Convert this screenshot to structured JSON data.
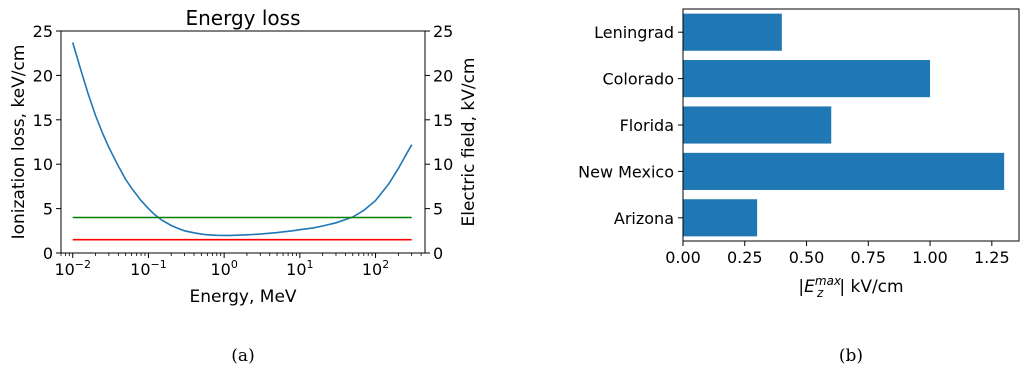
{
  "chart_data": [
    {
      "type": "line",
      "title": "Energy loss",
      "xlabel": "Energy, MeV",
      "ylabel": "Ionization loss, keV/cm",
      "ylabel_right": "Electric field, kV/cm",
      "xscale": "log",
      "xlim": [
        0.007,
        450
      ],
      "ylim": [
        0,
        25
      ],
      "ylim_right": [
        0,
        25
      ],
      "x_ticks": [
        {
          "value": 0.01,
          "base": "10",
          "exp": "−2"
        },
        {
          "value": 0.1,
          "base": "10",
          "exp": "−1"
        },
        {
          "value": 1,
          "base": "10",
          "exp": "0"
        },
        {
          "value": 10,
          "base": "10",
          "exp": "1"
        },
        {
          "value": 100,
          "base": "10",
          "exp": "2"
        }
      ],
      "y_ticks": [
        "0",
        "5",
        "10",
        "15",
        "20",
        "25"
      ],
      "y_ticks_right": [
        "0",
        "5",
        "10",
        "15",
        "20",
        "25"
      ],
      "grid": false,
      "colors": {
        "curve": "#1f77b4",
        "green": "#008000",
        "red": "#ff0000"
      },
      "series": [
        {
          "x": [
            0.01,
            0.013,
            0.016,
            0.02,
            0.025,
            0.03,
            0.04,
            0.05,
            0.06,
            0.08,
            0.1,
            0.12,
            0.15,
            0.2,
            0.25,
            0.3,
            0.4,
            0.5,
            0.6,
            0.8,
            1.0,
            1.2,
            1.5,
            2,
            3,
            5,
            8,
            10,
            15,
            20,
            30,
            50,
            70,
            100,
            150,
            200,
            250,
            300
          ],
          "y": [
            23.7,
            20.4,
            17.9,
            15.5,
            13.4,
            11.9,
            9.8,
            8.3,
            7.3,
            5.9,
            5.0,
            4.35,
            3.7,
            3.1,
            2.75,
            2.5,
            2.27,
            2.13,
            2.05,
            1.99,
            1.98,
            1.98,
            2.0,
            2.05,
            2.13,
            2.3,
            2.5,
            2.62,
            2.83,
            3.04,
            3.4,
            4.05,
            4.8,
            5.9,
            7.8,
            9.5,
            11.0,
            12.2
          ]
        },
        {
          "x": [
            0.01,
            300
          ],
          "y": [
            4.0,
            4.0
          ]
        },
        {
          "x": [
            0.01,
            300
          ],
          "y": [
            1.5,
            1.5
          ]
        }
      ],
      "caption": "(a)"
    },
    {
      "type": "bar",
      "orientation": "horizontal",
      "categories": [
        "Leningrad",
        "Colorado",
        "Florida",
        "New Mexico",
        "Arizona"
      ],
      "values": [
        0.4,
        1.0,
        0.6,
        1.3,
        0.3
      ],
      "xlabel_parts": {
        "open": "|",
        "main": "E",
        "sub": "z",
        "sup": "max",
        "close": "| kV/cm"
      },
      "xlim": [
        0,
        1.36
      ],
      "x_ticks": [
        "0.00",
        "0.25",
        "0.50",
        "0.75",
        "1.00",
        "1.25"
      ],
      "colors": {
        "bar": "#1f77b4"
      },
      "grid": false,
      "caption": "(b)"
    }
  ]
}
